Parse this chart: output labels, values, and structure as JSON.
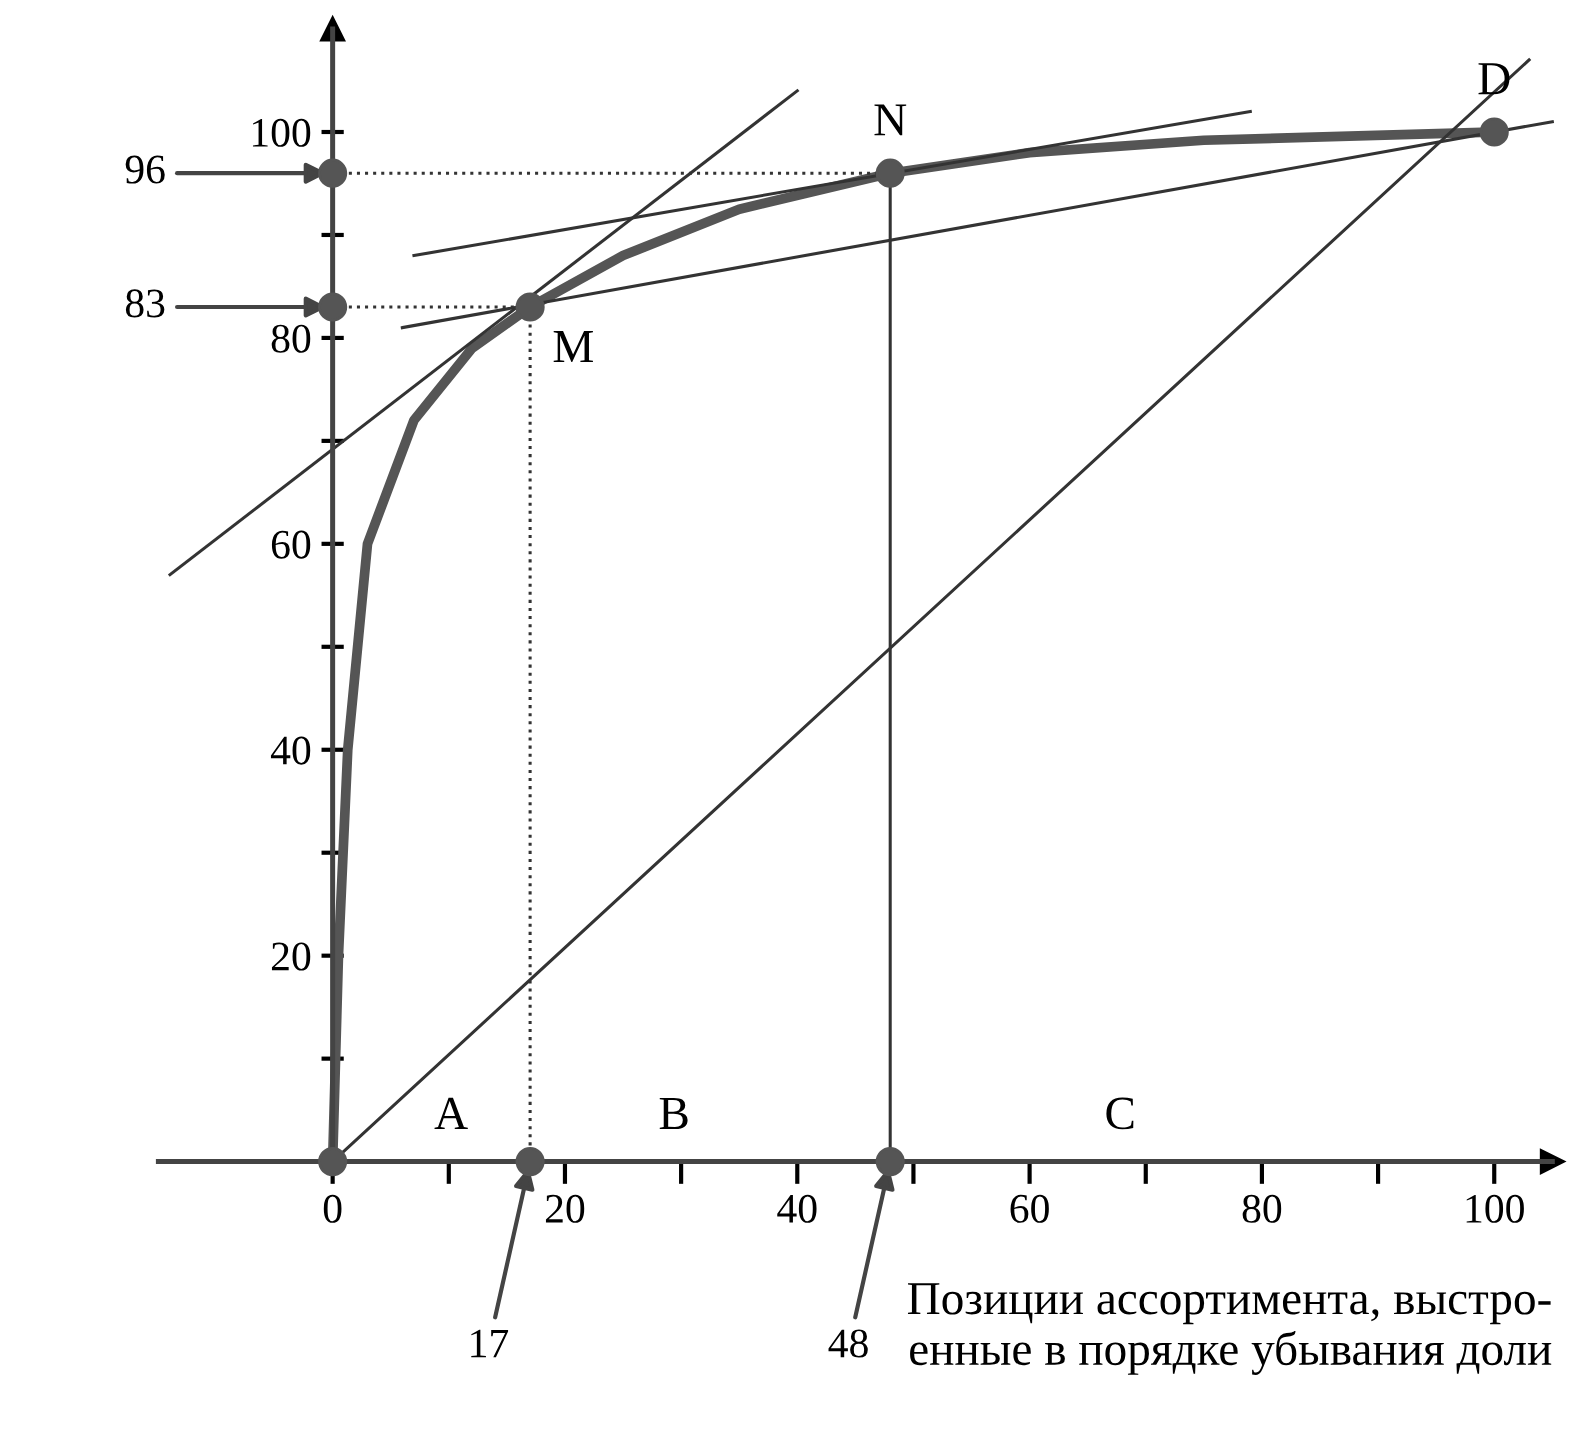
{
  "chart_data": {
    "type": "line",
    "xlabel": "Позиции ассортимента, выстро-\nенные в порядке убывания доли",
    "xlim": [
      -15,
      105
    ],
    "ylim": [
      0,
      110
    ],
    "xticks": [
      {
        "value": 0,
        "label": "0"
      },
      {
        "value": 10,
        "label": null
      },
      {
        "value": 20,
        "label": "20"
      },
      {
        "value": 30,
        "label": null
      },
      {
        "value": 40,
        "label": "40"
      },
      {
        "value": 50,
        "label": null
      },
      {
        "value": 60,
        "label": "60"
      },
      {
        "value": 70,
        "label": null
      },
      {
        "value": 80,
        "label": "80"
      },
      {
        "value": 90,
        "label": null
      },
      {
        "value": 100,
        "label": "100"
      }
    ],
    "yticks": [
      {
        "value": 10,
        "label": null
      },
      {
        "value": 20,
        "label": "20"
      },
      {
        "value": 30,
        "label": null
      },
      {
        "value": 40,
        "label": "40"
      },
      {
        "value": 50,
        "label": null
      },
      {
        "value": 60,
        "label": "60"
      },
      {
        "value": 70,
        "label": null
      },
      {
        "value": 80,
        "label": "80"
      },
      {
        "value": 90,
        "label": null
      },
      {
        "value": 100,
        "label": "100"
      }
    ],
    "grid": false,
    "series": [
      {
        "color": "#555555",
        "x": [
          0,
          0.5,
          1.3,
          3,
          7,
          12,
          17,
          25,
          35,
          48,
          60,
          75,
          100
        ],
        "values": [
          0,
          20,
          40,
          60,
          72,
          79,
          83,
          88,
          92.5,
          96,
          98,
          99.2,
          100
        ]
      },
      {
        "color": "#333333",
        "x": [
          -14,
          40
        ],
        "values": [
          57,
          104
        ]
      },
      {
        "color": "#333333",
        "x": [
          6,
          105
        ],
        "values": [
          81,
          101
        ]
      },
      {
        "color": "#333333",
        "x": [
          7,
          79
        ],
        "values": [
          88,
          102
        ]
      },
      {
        "color": "#333333",
        "x": [
          0,
          103
        ],
        "values": [
          0,
          107
        ]
      },
      {
        "color": "#333333",
        "line_style": "dotted",
        "x": [
          0,
          48
        ],
        "values": [
          96,
          96
        ]
      },
      {
        "color": "#333333",
        "line_style": "dotted",
        "x": [
          0,
          17
        ],
        "values": [
          83,
          83
        ]
      },
      {
        "color": "#333333",
        "line_style": "dotted",
        "x": [
          17,
          17
        ],
        "values": [
          0,
          83
        ]
      },
      {
        "color": "#333333",
        "x": [
          48,
          48
        ],
        "values": [
          0,
          96
        ]
      },
      {
        "type": "scatter",
        "color": "#555555",
        "marker": "circle",
        "x": [
          0,
          17,
          48,
          100,
          0,
          0,
          17,
          48
        ],
        "values": [
          0,
          83,
          96,
          100,
          96,
          83,
          0,
          0
        ]
      }
    ],
    "annotations": [
      {
        "text": "96",
        "x": 0,
        "y": 96
      },
      {
        "text": "83",
        "x": 0,
        "y": 83
      },
      {
        "text": "17",
        "x": 17,
        "y": 0
      },
      {
        "text": "48",
        "x": 48,
        "y": 0
      },
      {
        "text": "M",
        "x": 17,
        "y": 83
      },
      {
        "text": "N",
        "x": 48,
        "y": 96
      },
      {
        "text": "D",
        "x": 100,
        "y": 100
      },
      "A",
      "B",
      "C"
    ]
  }
}
